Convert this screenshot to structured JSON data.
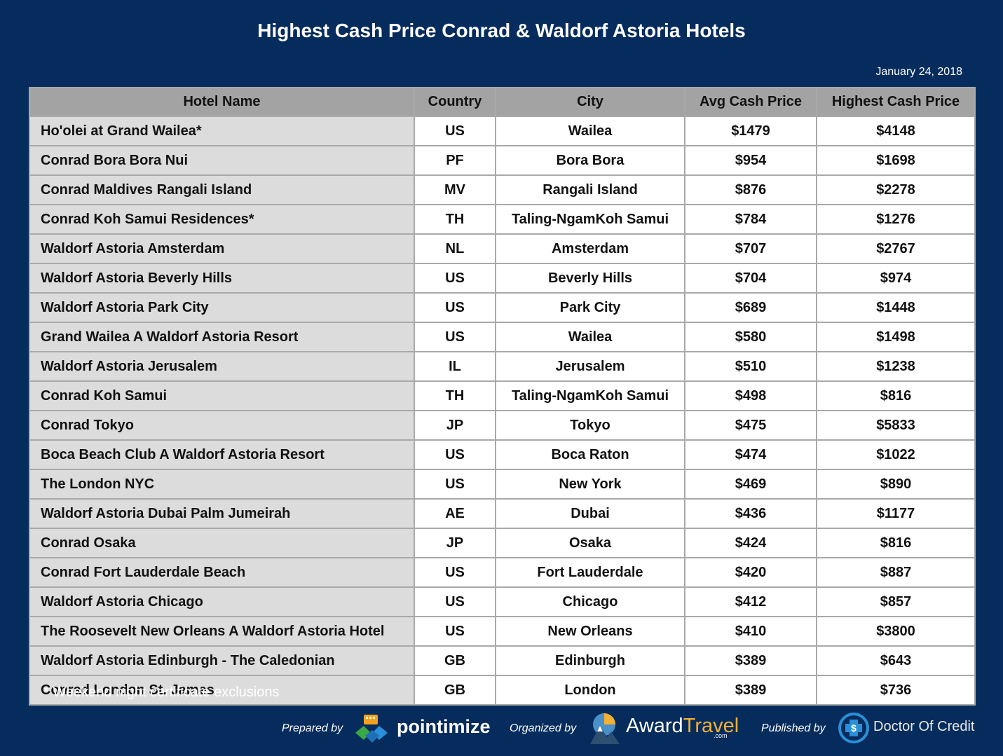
{
  "title": "Highest Cash Price Conrad & Waldorf Astoria Hotels",
  "date": "January 24, 2018",
  "columns": [
    "Hotel Name",
    "Country",
    "City",
    "Avg Cash Price",
    "Highest Cash Price"
  ],
  "rows": [
    {
      "name": "Ho'olei at Grand Wailea*",
      "country": "US",
      "city": "Wailea",
      "avg": "$1479",
      "high": "$4148"
    },
    {
      "name": "Conrad Bora Bora Nui",
      "country": "PF",
      "city": "Bora Bora",
      "avg": "$954",
      "high": "$1698"
    },
    {
      "name": "Conrad Maldives Rangali Island",
      "country": "MV",
      "city": "Rangali Island",
      "avg": "$876",
      "high": "$2278"
    },
    {
      "name": "Conrad Koh Samui Residences*",
      "country": "TH",
      "city": "Taling-NgamKoh Samui",
      "avg": "$784",
      "high": "$1276"
    },
    {
      "name": "Waldorf Astoria Amsterdam",
      "country": "NL",
      "city": "Amsterdam",
      "avg": "$707",
      "high": "$2767"
    },
    {
      "name": "Waldorf Astoria Beverly Hills",
      "country": "US",
      "city": "Beverly Hills",
      "avg": "$704",
      "high": "$974"
    },
    {
      "name": "Waldorf Astoria Park City",
      "country": "US",
      "city": "Park City",
      "avg": "$689",
      "high": "$1448"
    },
    {
      "name": "Grand Wailea A Waldorf Astoria Resort",
      "country": "US",
      "city": "Wailea",
      "avg": "$580",
      "high": "$1498"
    },
    {
      "name": "Waldorf Astoria Jerusalem",
      "country": "IL",
      "city": "Jerusalem",
      "avg": "$510",
      "high": "$1238"
    },
    {
      "name": "Conrad Koh Samui",
      "country": "TH",
      "city": "Taling-NgamKoh Samui",
      "avg": "$498",
      "high": "$816"
    },
    {
      "name": "Conrad Tokyo",
      "country": "JP",
      "city": "Tokyo",
      "avg": "$475",
      "high": "$5833"
    },
    {
      "name": "Boca Beach Club A Waldorf Astoria Resort",
      "country": "US",
      "city": "Boca Raton",
      "avg": "$474",
      "high": "$1022"
    },
    {
      "name": "The London NYC",
      "country": "US",
      "city": "New York",
      "avg": "$469",
      "high": "$890"
    },
    {
      "name": "Waldorf Astoria Dubai Palm Jumeirah",
      "country": "AE",
      "city": "Dubai",
      "avg": "$436",
      "high": "$1177"
    },
    {
      "name": "Conrad Osaka",
      "country": "JP",
      "city": "Osaka",
      "avg": "$424",
      "high": "$816"
    },
    {
      "name": "Conrad Fort Lauderdale Beach",
      "country": "US",
      "city": "Fort Lauderdale",
      "avg": "$420",
      "high": "$887"
    },
    {
      "name": "Waldorf Astoria Chicago",
      "country": "US",
      "city": "Chicago",
      "avg": "$412",
      "high": "$857"
    },
    {
      "name": "The Roosevelt New Orleans A Waldorf Astoria Hotel",
      "country": "US",
      "city": "New Orleans",
      "avg": "$410",
      "high": "$3800"
    },
    {
      "name": "Waldorf Astoria Edinburgh - The Caledonian",
      "country": "GB",
      "city": "Edinburgh",
      "avg": "$389",
      "high": "$643"
    },
    {
      "name": "Conrad London St. James",
      "country": "GB",
      "city": "London",
      "avg": "$389",
      "high": "$736"
    }
  ],
  "footnote": "* Weekend night certificate exclusions",
  "credits": {
    "prepared_label": "Prepared by",
    "prepared_brand": "pointimize",
    "organized_label": "Organized by",
    "organized_brand_a": "Award",
    "organized_brand_b": "Travel",
    "organized_brand_sub": ".com",
    "published_label": "Published by",
    "published_brand": "Doctor Of Credit",
    "icons": [
      "pointimize-logo-icon",
      "awardtravel-logo-icon",
      "doctorofcredit-logo-icon"
    ]
  },
  "colors": {
    "background": "#052c5c",
    "header_bg": "#a3a3a3",
    "name_col_bg": "#dcdcdc",
    "cell_bg": "#ffffff"
  }
}
